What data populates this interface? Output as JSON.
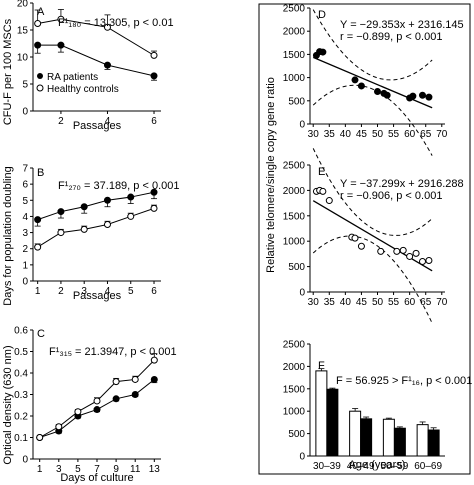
{
  "panels": {
    "A": {
      "letter": "A",
      "stat": "F¹₁₈₀ = 13.305, p < 0.01",
      "ylabel": "CFU-F per 100 MSCs",
      "xlabel": "Passages",
      "legend": [
        "RA patients",
        "Healthy controls"
      ]
    },
    "B": {
      "letter": "B",
      "stat": "F¹₂₇₀ = 37.189, p < 0.001",
      "ylabel": "Days for population doubling",
      "xlabel": "Passages"
    },
    "C": {
      "letter": "C",
      "stat": "F¹₃₁₅ = 21.3947, p < 0.001",
      "ylabel": "Optical density (630 nm)",
      "xlabel": "Days of culture"
    },
    "D": {
      "letter": "D",
      "eq": "Y = −29.353x + 2316.145",
      "r": "r = −0.899, p < 0.001"
    },
    "E": {
      "letter": "E",
      "eq": "Y = −37.299x + 2916.288",
      "r": "r = −0.906, p < 0.001"
    },
    "F": {
      "letter": "F",
      "stat": "F = 56.925 > F¹₁₆, p < 0.001"
    },
    "right_ylabel": "Relative telomere/single copy gene ratio",
    "right_xlabel": "Age (years)"
  },
  "chart_data": [
    {
      "panel": "A",
      "type": "line",
      "x": [
        1,
        2,
        4,
        6
      ],
      "xticks": [
        2,
        4,
        6
      ],
      "xlim": [
        0.8,
        6.3
      ],
      "yticks": [
        0,
        5,
        10,
        15,
        20
      ],
      "ylim": [
        0,
        20
      ],
      "series": [
        {
          "name": "RA patients",
          "marker": "filled",
          "values": [
            12.2,
            12.2,
            8.5,
            6.5
          ],
          "errors": [
            1.5,
            1.3,
            0.8,
            0.8
          ]
        },
        {
          "name": "Healthy controls",
          "marker": "open",
          "values": [
            16.2,
            17,
            15.5,
            10.3
          ],
          "errors": [
            2.5,
            1.8,
            2.3,
            0.8
          ]
        }
      ]
    },
    {
      "panel": "B",
      "type": "line",
      "x": [
        1,
        2,
        3,
        4,
        5,
        6
      ],
      "xticks": [
        1,
        2,
        3,
        4,
        5,
        6
      ],
      "xlim": [
        0.8,
        6.3
      ],
      "yticks": [
        0,
        1,
        2,
        3,
        4,
        5,
        6,
        7
      ],
      "ylim": [
        0,
        7
      ],
      "series": [
        {
          "name": "RA patients",
          "marker": "filled",
          "values": [
            3.8,
            4.3,
            4.6,
            5.0,
            5.2,
            5.5
          ],
          "errors": [
            0.4,
            0.4,
            0.4,
            0.4,
            0.4,
            0.4
          ]
        },
        {
          "name": "Healthy controls",
          "marker": "open",
          "values": [
            2.1,
            3.0,
            3.2,
            3.5,
            4.0,
            4.5
          ],
          "errors": [
            0.2,
            0.2,
            0.2,
            0.2,
            0.2,
            0.2
          ]
        }
      ]
    },
    {
      "panel": "C",
      "type": "line",
      "x": [
        1,
        3,
        5,
        7,
        9,
        11,
        13
      ],
      "xticks": [
        1,
        3,
        5,
        7,
        9,
        11,
        13
      ],
      "xlim": [
        0.3,
        13.7
      ],
      "yticks": [
        0,
        0.1,
        0.2,
        0.3,
        0.4,
        0.5,
        0.6
      ],
      "ylim": [
        0,
        0.6
      ],
      "series": [
        {
          "name": "RA patients",
          "marker": "filled",
          "values": [
            0.1,
            0.13,
            0.2,
            0.23,
            0.28,
            0.3,
            0.37
          ],
          "errors": [
            0.005,
            0.01,
            0.01,
            0.01,
            0.01,
            0.01,
            0.015
          ]
        },
        {
          "name": "Healthy controls",
          "marker": "open",
          "values": [
            0.1,
            0.15,
            0.22,
            0.27,
            0.36,
            0.37,
            0.46
          ],
          "errors": [
            0.005,
            0.01,
            0.01,
            0.015,
            0.015,
            0.015,
            0.03
          ]
        }
      ]
    },
    {
      "panel": "D",
      "type": "scatter",
      "xticks": [
        30,
        35,
        40,
        45,
        50,
        55,
        60,
        65,
        70
      ],
      "xlim": [
        29,
        71
      ],
      "yticks": [
        0,
        500,
        1000,
        1500,
        2000,
        2500
      ],
      "ylim": [
        0,
        2500
      ],
      "marker": "filled",
      "points": [
        [
          31,
          1480
        ],
        [
          32,
          1560
        ],
        [
          33,
          1550
        ],
        [
          43,
          950
        ],
        [
          45,
          820
        ],
        [
          50,
          700
        ],
        [
          52,
          660
        ],
        [
          53,
          620
        ],
        [
          60,
          560
        ],
        [
          61,
          600
        ],
        [
          64,
          620
        ],
        [
          66,
          580
        ]
      ],
      "fit": {
        "slope": -29.353,
        "intercept": 2316.145,
        "x": [
          30,
          67
        ]
      }
    },
    {
      "panel": "E",
      "type": "scatter",
      "xticks": [
        30,
        35,
        40,
        45,
        50,
        55,
        60,
        65,
        70
      ],
      "xlim": [
        29,
        71
      ],
      "yticks": [
        0,
        500,
        1000,
        1500,
        2000,
        2500
      ],
      "ylim": [
        0,
        2500
      ],
      "marker": "open",
      "points": [
        [
          31,
          1980
        ],
        [
          32,
          2000
        ],
        [
          33,
          1980
        ],
        [
          35,
          1800
        ],
        [
          42,
          1080
        ],
        [
          43,
          1060
        ],
        [
          45,
          900
        ],
        [
          51,
          800
        ],
        [
          56,
          800
        ],
        [
          58,
          820
        ],
        [
          60,
          700
        ],
        [
          62,
          760
        ],
        [
          64,
          600
        ],
        [
          66,
          620
        ]
      ],
      "fit": {
        "slope": -37.299,
        "intercept": 2916.288,
        "x": [
          30,
          67
        ]
      }
    },
    {
      "panel": "F",
      "type": "bar",
      "categories": [
        "30–39",
        "40–49",
        "50–59",
        "60–69"
      ],
      "yticks": [
        0,
        500,
        1000,
        1500,
        2000,
        2500
      ],
      "ylim": [
        0,
        2500
      ],
      "series": [
        {
          "name": "Healthy controls",
          "fill": "#ffffff",
          "values": [
            1900,
            1000,
            820,
            700
          ],
          "errors": [
            50,
            60,
            25,
            60
          ]
        },
        {
          "name": "RA patients",
          "fill": "#000000",
          "values": [
            1490,
            830,
            620,
            580
          ],
          "errors": [
            25,
            40,
            30,
            50
          ]
        }
      ]
    }
  ]
}
